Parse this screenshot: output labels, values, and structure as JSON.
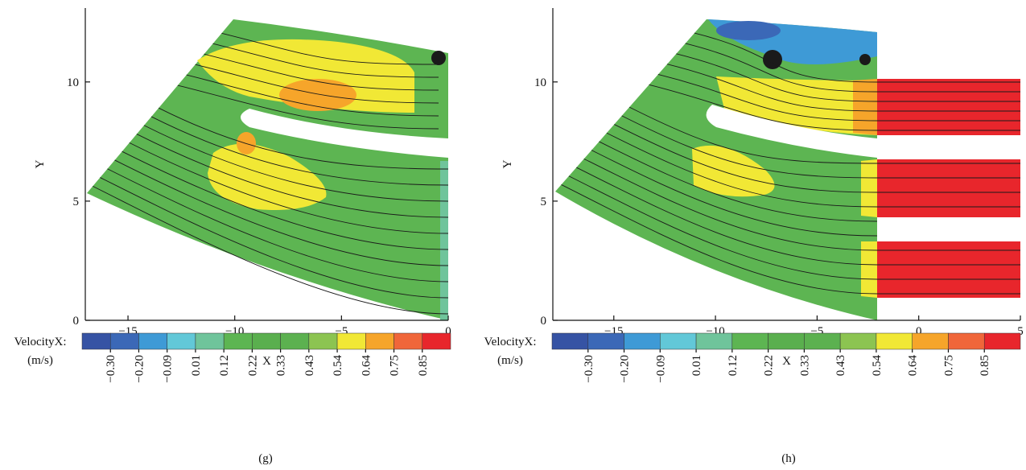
{
  "chart_data": [
    {
      "type": "contour",
      "x_label": "X",
      "y_label": "Y",
      "xlim": [
        -17,
        0
      ],
      "ylim": [
        0,
        13.1
      ],
      "xticks": [
        {
          "value": -15,
          "label": "−15"
        },
        {
          "value": -10,
          "label": "−10"
        },
        {
          "value": -5,
          "label": "−5"
        },
        0
      ],
      "yticks": [
        0,
        5,
        10
      ],
      "colorbar": {
        "title": "VelocityX:",
        "unit": "(m/s)",
        "ticks": [
          {
            "value": -0.3,
            "label": "−0.30"
          },
          {
            "value": -0.2,
            "label": "−0.20"
          },
          {
            "value": -0.09,
            "label": "−0.09"
          },
          0.01,
          0.12,
          0.22,
          0.33,
          0.43,
          0.54,
          0.64,
          0.75,
          0.85
        ],
        "colors": [
          "#3653a4",
          "#3b68b7",
          "#3e9ad6",
          "#62c8d8",
          "#6fc49b",
          "#5db552",
          "#5aaf4e",
          "#5cb150",
          "#8cc451",
          "#f1e835",
          "#f6a52a",
          "#f0663a",
          "#e8262c"
        ]
      },
      "caption": "(g)"
    },
    {
      "type": "contour",
      "x_label": "X",
      "y_label": "Y",
      "xlim": [
        -18,
        5
      ],
      "ylim": [
        0,
        13.1
      ],
      "xticks": [
        {
          "value": -15,
          "label": "−15"
        },
        {
          "value": -10,
          "label": "−10"
        },
        {
          "value": -5,
          "label": "−5"
        },
        0,
        5
      ],
      "yticks": [
        0,
        5,
        10
      ],
      "colorbar": {
        "title": "VelocityX:",
        "unit": "(m/s)",
        "ticks": [
          {
            "value": -0.3,
            "label": "−0.30"
          },
          {
            "value": -0.2,
            "label": "−0.20"
          },
          {
            "value": -0.09,
            "label": "−0.09"
          },
          0.01,
          0.12,
          0.22,
          0.33,
          0.43,
          0.54,
          0.64,
          0.75,
          0.85
        ],
        "colors": [
          "#3653a4",
          "#3b68b7",
          "#3e9ad6",
          "#62c8d8",
          "#6fc49b",
          "#5db552",
          "#5aaf4e",
          "#5cb150",
          "#8cc451",
          "#f1e835",
          "#f6a52a",
          "#f0663a",
          "#e8262c"
        ]
      },
      "caption": "(h)"
    }
  ]
}
